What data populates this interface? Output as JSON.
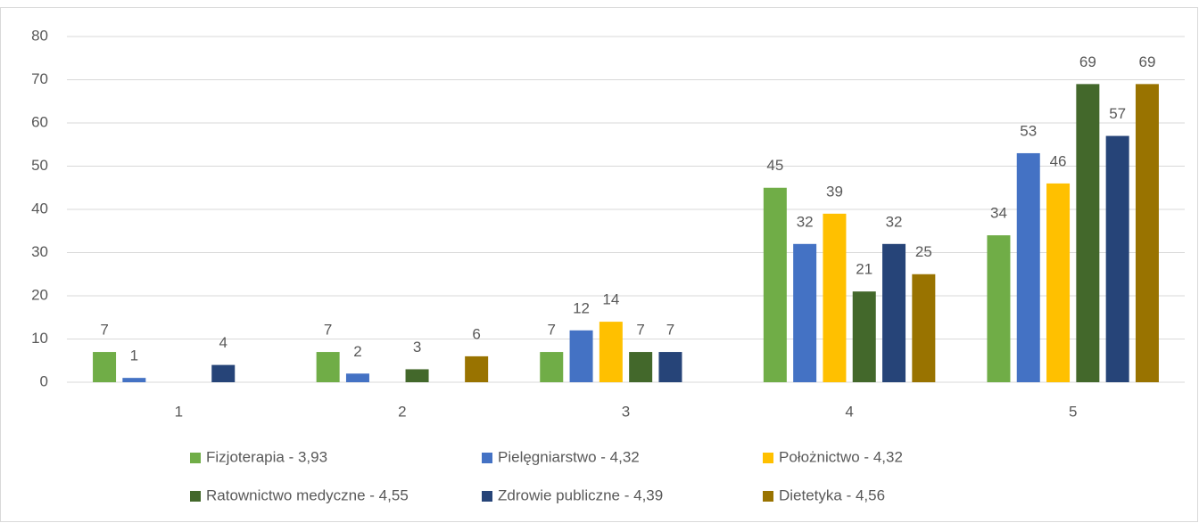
{
  "chart_data": {
    "type": "bar",
    "categories": [
      "1",
      "2",
      "3",
      "4",
      "5"
    ],
    "series": [
      {
        "name": "Fizjoterapia - 3,93",
        "color": "#70ad47",
        "values": [
          7,
          7,
          7,
          45,
          34
        ]
      },
      {
        "name": "Pielęgniarstwo - 4,32",
        "color": "#4472c4",
        "values": [
          1,
          2,
          12,
          32,
          53
        ]
      },
      {
        "name": "Położnictwo - 4,32",
        "color": "#ffc000",
        "values": [
          null,
          null,
          14,
          39,
          46
        ]
      },
      {
        "name": "Ratownictwo medyczne - 4,55",
        "color": "#43682b",
        "values": [
          null,
          3,
          7,
          21,
          69
        ]
      },
      {
        "name": "Zdrowie publiczne - 4,39",
        "color": "#264478",
        "values": [
          4,
          null,
          7,
          32,
          57
        ]
      },
      {
        "name": "Dietetyka - 4,56",
        "color": "#997300",
        "values": [
          null,
          6,
          null,
          25,
          69
        ]
      }
    ],
    "ylim": [
      0,
      80
    ],
    "yticks": [
      0,
      10,
      20,
      30,
      40,
      50,
      60,
      70,
      80
    ],
    "grid": true,
    "legend": "bottom"
  }
}
